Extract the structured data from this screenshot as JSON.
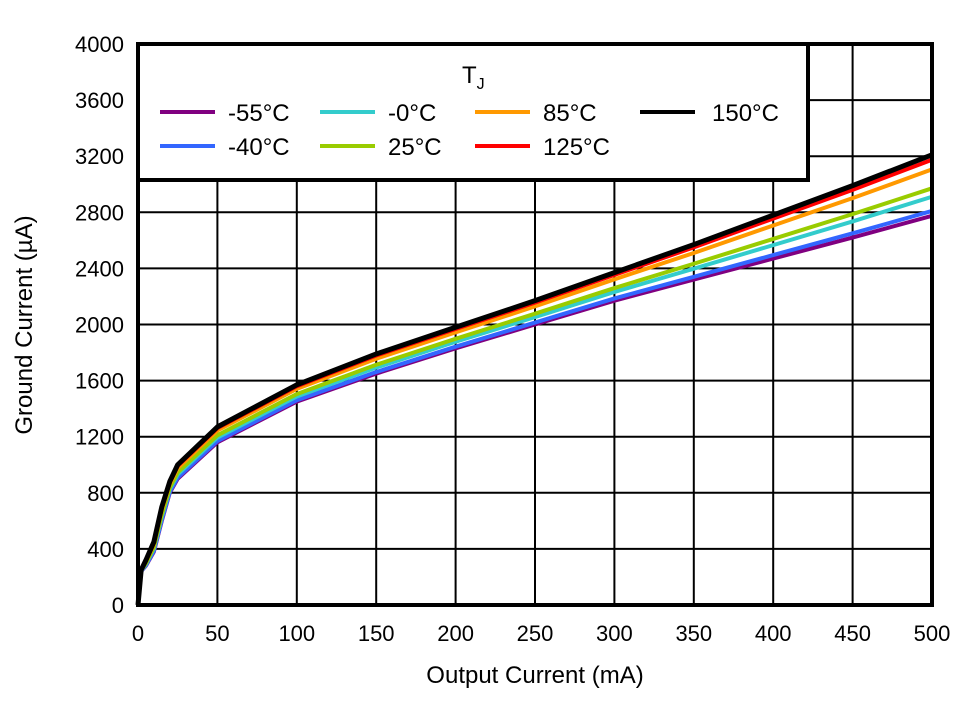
{
  "chart_data": {
    "type": "line",
    "title": "",
    "xlabel": "Output Current (mA)",
    "ylabel": "Ground Current (µA)",
    "xlim": [
      0,
      500
    ],
    "ylim": [
      0,
      4000
    ],
    "xticks": [
      0,
      50,
      100,
      150,
      200,
      250,
      300,
      350,
      400,
      450,
      500
    ],
    "yticks": [
      0,
      400,
      800,
      1200,
      1600,
      2000,
      2400,
      2800,
      3200,
      3600,
      4000
    ],
    "grid": true,
    "legend": {
      "title": "T",
      "title_sub": "J",
      "placement": "top-left"
    },
    "x": [
      0,
      2,
      5,
      10,
      15,
      20,
      25,
      50,
      100,
      150,
      200,
      250,
      300,
      350,
      400,
      450,
      500
    ],
    "series": [
      {
        "name": "-55°C",
        "color": "#800080",
        "values": [
          0,
          240,
          280,
          380,
          600,
          800,
          900,
          1160,
          1450,
          1650,
          1830,
          2000,
          2170,
          2320,
          2470,
          2620,
          2775
        ]
      },
      {
        "name": "-40°C",
        "color": "#3366ff",
        "values": [
          0,
          241,
          283,
          386,
          608,
          806,
          908,
          1169,
          1460,
          1661,
          1842,
          2014,
          2186,
          2340,
          2495,
          2650,
          2810
        ]
      },
      {
        "name": "-0°C",
        "color": "#33cccc",
        "values": [
          0,
          243,
          292,
          402,
          631,
          825,
          931,
          1194,
          1487,
          1693,
          1877,
          2053,
          2232,
          2398,
          2566,
          2735,
          2911
        ]
      },
      {
        "name": "25°C",
        "color": "#99cc00",
        "values": [
          0,
          245,
          298,
          412,
          645,
          836,
          945,
          1210,
          1504,
          1713,
          1898,
          2077,
          2260,
          2433,
          2610,
          2787,
          2971
        ]
      },
      {
        "name": "85°C",
        "color": "#ff9900",
        "values": [
          0,
          248,
          310,
          433,
          676,
          861,
          976,
          1244,
          1541,
          1756,
          1944,
          2129,
          2322,
          2510,
          2706,
          2901,
          3106
        ]
      },
      {
        "name": "125°C",
        "color": "#ff0000",
        "values": [
          0,
          249,
          317,
          444,
          692,
          874,
          992,
          1261,
          1560,
          1779,
          1968,
          2156,
          2354,
          2550,
          2755,
          2960,
          3175
        ]
      },
      {
        "name": "150°C",
        "color": "#000000",
        "values": [
          0,
          250,
          320,
          450,
          700,
          880,
          1000,
          1270,
          1570,
          1790,
          1980,
          2170,
          2370,
          2570,
          2780,
          2990,
          3210
        ]
      }
    ]
  }
}
